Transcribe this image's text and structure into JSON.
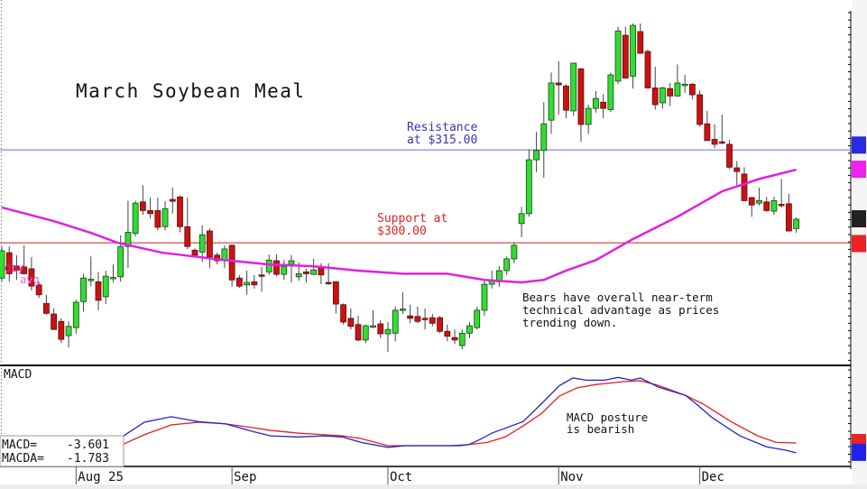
{
  "chart_data": {
    "type": "candlestick",
    "title": "March Soybean Meal",
    "ylim": [
      280.2,
      339.2
    ],
    "price_ohlc": [
      [
        294.3,
        299.4,
        293.7,
        298.7
      ],
      [
        298.4,
        299.4,
        293.7,
        295.0
      ],
      [
        296.2,
        298.0,
        294.0,
        295.6
      ],
      [
        296.1,
        299.6,
        294.9,
        295.0
      ],
      [
        295.8,
        297.7,
        292.3,
        293.0
      ],
      [
        293.2,
        293.7,
        291.1,
        291.6
      ],
      [
        290.2,
        291.6,
        288.4,
        288.6
      ],
      [
        288.5,
        289.4,
        285.9,
        286.0
      ],
      [
        287.3,
        287.8,
        283.8,
        284.4
      ],
      [
        285.0,
        287.3,
        283.1,
        286.5
      ],
      [
        286.3,
        290.8,
        285.3,
        290.4
      ],
      [
        290.5,
        295.0,
        288.9,
        294.3
      ],
      [
        294.0,
        297.8,
        293.0,
        294.1
      ],
      [
        293.7,
        295.3,
        289.1,
        290.7
      ],
      [
        291.3,
        295.5,
        290.1,
        294.6
      ],
      [
        294.3,
        296.5,
        293.6,
        294.4
      ],
      [
        294.5,
        301.2,
        293.7,
        299.4
      ],
      [
        299.4,
        306.8,
        295.9,
        301.7
      ],
      [
        301.5,
        306.8,
        301.0,
        306.4
      ],
      [
        306.6,
        309.3,
        304.5,
        305.2
      ],
      [
        305.2,
        307.3,
        303.9,
        304.7
      ],
      [
        305.2,
        307.3,
        302.0,
        302.5
      ],
      [
        302.6,
        306.7,
        302.0,
        305.5
      ],
      [
        307.0,
        308.9,
        304.7,
        306.7
      ],
      [
        307.4,
        307.6,
        301.7,
        302.6
      ],
      [
        302.6,
        307.3,
        299.0,
        299.4
      ],
      [
        298.8,
        299.1,
        297.7,
        298.0
      ],
      [
        298.5,
        302.8,
        296.9,
        301.3
      ],
      [
        301.9,
        302.3,
        295.9,
        297.7
      ],
      [
        298.0,
        298.4,
        296.5,
        297.1
      ],
      [
        297.1,
        299.6,
        295.9,
        299.0
      ],
      [
        299.6,
        299.7,
        292.9,
        294.0
      ],
      [
        294.3,
        294.8,
        292.7,
        293.0
      ],
      [
        293.2,
        295.5,
        291.6,
        293.6
      ],
      [
        293.7,
        294.8,
        292.6,
        293.2
      ],
      [
        294.8,
        296.1,
        292.1,
        294.7
      ],
      [
        295.3,
        298.1,
        294.8,
        297.2
      ],
      [
        297.1,
        298.1,
        294.6,
        294.9
      ],
      [
        294.9,
        297.2,
        294.0,
        296.2
      ],
      [
        296.5,
        298.0,
        293.6,
        297.1
      ],
      [
        294.5,
        296.8,
        293.9,
        295.0
      ],
      [
        295.3,
        295.8,
        293.6,
        295.0
      ],
      [
        294.9,
        297.4,
        294.8,
        295.6
      ],
      [
        296.1,
        296.7,
        293.3,
        294.8
      ],
      [
        293.6,
        296.7,
        293.2,
        293.5
      ],
      [
        293.7,
        293.8,
        288.6,
        290.1
      ],
      [
        290.0,
        290.2,
        286.8,
        287.2
      ],
      [
        287.8,
        289.4,
        286.0,
        286.5
      ],
      [
        286.8,
        288.2,
        284.1,
        284.3
      ],
      [
        284.3,
        286.8,
        283.8,
        286.6
      ],
      [
        286.5,
        289.1,
        286.2,
        286.6
      ],
      [
        286.9,
        287.5,
        284.6,
        285.3
      ],
      [
        285.3,
        287.2,
        282.4,
        286.0
      ],
      [
        285.4,
        289.7,
        284.1,
        289.1
      ],
      [
        289.2,
        292.0,
        288.5,
        289.3
      ],
      [
        288.2,
        290.0,
        287.0,
        287.8
      ],
      [
        288.1,
        289.7,
        287.0,
        287.3
      ],
      [
        287.8,
        289.4,
        286.0,
        287.7
      ],
      [
        287.9,
        288.5,
        286.5,
        287.0
      ],
      [
        287.9,
        288.2,
        285.4,
        285.7
      ],
      [
        285.7,
        286.8,
        284.1,
        284.9
      ],
      [
        284.7,
        286.0,
        283.7,
        284.3
      ],
      [
        283.4,
        286.0,
        282.8,
        285.4
      ],
      [
        285.4,
        287.2,
        284.6,
        286.6
      ],
      [
        286.3,
        289.7,
        286.0,
        289.1
      ],
      [
        289.1,
        293.9,
        288.2,
        293.3
      ],
      [
        293.3,
        295.5,
        292.6,
        294.0
      ],
      [
        293.7,
        296.2,
        292.9,
        295.5
      ],
      [
        295.5,
        297.8,
        294.8,
        297.4
      ],
      [
        297.4,
        300.1,
        296.7,
        299.6
      ],
      [
        303.1,
        305.8,
        300.9,
        304.7
      ],
      [
        304.7,
        315.1,
        304.2,
        313.4
      ],
      [
        313.4,
        317.9,
        311.4,
        314.9
      ],
      [
        314.9,
        322.7,
        310.5,
        319.2
      ],
      [
        319.8,
        327.5,
        317.6,
        325.8
      ],
      [
        325.8,
        329.3,
        320.7,
        325.5
      ],
      [
        325.3,
        325.6,
        320.1,
        321.4
      ],
      [
        321.3,
        329.1,
        320.5,
        329.0
      ],
      [
        328.1,
        328.2,
        316.3,
        319.1
      ],
      [
        319.1,
        322.3,
        317.6,
        321.7
      ],
      [
        321.7,
        324.5,
        321.0,
        323.3
      ],
      [
        322.7,
        324.0,
        320.1,
        321.7
      ],
      [
        321.5,
        327.5,
        321.1,
        327.1
      ],
      [
        326.1,
        334.9,
        325.6,
        334.2
      ],
      [
        333.5,
        334.9,
        326.5,
        326.6
      ],
      [
        326.9,
        335.4,
        324.9,
        335.1
      ],
      [
        334.1,
        335.4,
        330.5,
        330.6
      ],
      [
        330.9,
        331.2,
        324.9,
        325.0
      ],
      [
        325.0,
        328.4,
        321.5,
        322.3
      ],
      [
        322.6,
        325.2,
        321.7,
        325.0
      ],
      [
        324.9,
        325.8,
        322.1,
        323.7
      ],
      [
        323.7,
        328.8,
        323.6,
        325.8
      ],
      [
        325.6,
        327.1,
        324.2,
        325.6
      ],
      [
        325.6,
        325.8,
        323.2,
        323.9
      ],
      [
        323.9,
        324.6,
        318.8,
        319.1
      ],
      [
        319.2,
        321.3,
        316.5,
        316.5
      ],
      [
        316.7,
        319.1,
        315.3,
        315.9
      ],
      [
        316.3,
        320.7,
        315.9,
        316.2
      ],
      [
        315.9,
        316.6,
        311.9,
        312.2
      ],
      [
        312.1,
        313.2,
        309.2,
        311.5
      ],
      [
        311.1,
        312.2,
        306.7,
        306.8
      ],
      [
        307.3,
        307.4,
        304.2,
        306.1
      ],
      [
        306.4,
        308.9,
        306.0,
        306.8
      ],
      [
        306.6,
        307.4,
        305.0,
        305.2
      ],
      [
        305.1,
        307.4,
        304.5,
        306.8
      ],
      [
        306.2,
        310.3,
        305.7,
        306.1
      ],
      [
        306.3,
        307.9,
        301.9,
        301.9
      ],
      [
        302.3,
        304.1,
        301.6,
        303.8
      ]
    ],
    "moving_average": {
      "label_parts": [
        "day",
        "avg"
      ],
      "color": "#e020e0",
      "points": [
        [
          0,
          305.7
        ],
        [
          7,
          303.5
        ],
        [
          12,
          301.6
        ],
        [
          15.6,
          300.0
        ],
        [
          21.6,
          298.4
        ],
        [
          30,
          297.2
        ],
        [
          36,
          296.5
        ],
        [
          42,
          296.2
        ],
        [
          48,
          295.5
        ],
        [
          54,
          295.0
        ],
        [
          60,
          295.0
        ],
        [
          65,
          294.0
        ],
        [
          70,
          293.6
        ],
        [
          73,
          294.0
        ],
        [
          76,
          295.5
        ],
        [
          80,
          297.2
        ],
        [
          85,
          300.6
        ],
        [
          91,
          304.2
        ],
        [
          97,
          308.3
        ],
        [
          102,
          310.3
        ],
        [
          107,
          311.8
        ]
      ]
    },
    "levels": [
      {
        "name": "resistance",
        "value": 315.0,
        "color": "#6a6ae8",
        "text_lines": [
          "Resistance",
          "at $315.00"
        ],
        "text_color": "#3333bb"
      },
      {
        "name": "support",
        "value": 300.0,
        "color": "#cc2222",
        "text_lines": [
          "Support at",
          "$300.00"
        ],
        "text_color": "#dd2222"
      }
    ],
    "annotation": [
      "Bears have overall near-term",
      "technical advantage as prices",
      "trending down."
    ],
    "x_ticks": [
      {
        "index": 10,
        "label": "Aug 25"
      },
      {
        "index": 31,
        "label": "Sep"
      },
      {
        "index": 52,
        "label": "Oct"
      },
      {
        "index": 75,
        "label": "Nov"
      },
      {
        "index": 94,
        "label": "Dec"
      }
    ],
    "macd": {
      "title": "MACD",
      "ylim": [
        -6.1,
        12.4
      ],
      "macd_label": "MACD=",
      "macd_value": "-3.601",
      "macda_label": "MACDA=",
      "macda_value": "-1.783",
      "annotation": [
        "MACD posture",
        "is bearish"
      ],
      "macd_color": "#2222cc",
      "signal_color": "#e02020",
      "macd_line": [
        [
          16.4,
          -0.5
        ],
        [
          19.2,
          2.0
        ],
        [
          22.8,
          3.0
        ],
        [
          26.5,
          2.1
        ],
        [
          30.1,
          1.7
        ],
        [
          33.8,
          0.3
        ],
        [
          36.2,
          -0.5
        ],
        [
          39.9,
          -0.7
        ],
        [
          43.5,
          -0.5
        ],
        [
          45.9,
          -0.7
        ],
        [
          48.4,
          -1.7
        ],
        [
          52,
          -2.6
        ],
        [
          54.4,
          -2.3
        ],
        [
          58.1,
          -2.3
        ],
        [
          61.7,
          -2.3
        ],
        [
          64.2,
          -1.3
        ],
        [
          62.9,
          -2.1
        ],
        [
          66,
          0.0
        ],
        [
          70.2,
          2.1
        ],
        [
          72.7,
          5.4
        ],
        [
          75.1,
          8.7
        ],
        [
          76.9,
          10.1
        ],
        [
          78.7,
          9.7
        ],
        [
          81.2,
          9.7
        ],
        [
          83,
          10.2
        ],
        [
          84.8,
          9.7
        ],
        [
          86,
          10.1
        ],
        [
          88.5,
          8.4
        ],
        [
          92.1,
          6.9
        ],
        [
          93.3,
          5.6
        ],
        [
          95.7,
          2.8
        ],
        [
          99.4,
          -0.5
        ],
        [
          103,
          -2.5
        ],
        [
          105.5,
          -3.1
        ],
        [
          107,
          -3.6
        ]
      ],
      "signal_line": [
        [
          16.4,
          -2.0
        ],
        [
          19.2,
          -0.3
        ],
        [
          22.8,
          1.5
        ],
        [
          26.5,
          2.0
        ],
        [
          30.1,
          1.7
        ],
        [
          33.8,
          1.0
        ],
        [
          36.2,
          0.5
        ],
        [
          39.9,
          0.0
        ],
        [
          43.5,
          -0.3
        ],
        [
          45.9,
          -0.5
        ],
        [
          48.4,
          -1.0
        ],
        [
          52,
          -2.3
        ],
        [
          55.7,
          -2.3
        ],
        [
          60.5,
          -2.3
        ],
        [
          62.9,
          -2.1
        ],
        [
          65.4,
          -1.7
        ],
        [
          67.8,
          -0.7
        ],
        [
          70.2,
          1.3
        ],
        [
          72.7,
          3.6
        ],
        [
          75.1,
          6.8
        ],
        [
          77.5,
          8.3
        ],
        [
          80,
          8.9
        ],
        [
          83.6,
          9.4
        ],
        [
          86,
          9.6
        ],
        [
          88.5,
          8.7
        ],
        [
          92.1,
          6.9
        ],
        [
          94.5,
          5.3
        ],
        [
          98.2,
          2.1
        ],
        [
          101.8,
          -0.5
        ],
        [
          104.3,
          -1.7
        ],
        [
          107,
          -1.8
        ]
      ]
    },
    "right_markers": [
      {
        "color": "#2a2ae0",
        "panel": "price",
        "value": 315.7
      },
      {
        "color": "#ee22ee",
        "panel": "price",
        "value": 311.8
      },
      {
        "color": "#222222",
        "panel": "price",
        "value": 303.8
      },
      {
        "color": "#ee2222",
        "panel": "price",
        "value": 299.8
      },
      {
        "color": "#ee2222",
        "panel": "macd",
        "value": -1.8
      },
      {
        "color": "#2222ee",
        "panel": "macd",
        "value": -3.6
      }
    ],
    "colors": {
      "up": "#33dd33",
      "down": "#cc1111"
    }
  }
}
